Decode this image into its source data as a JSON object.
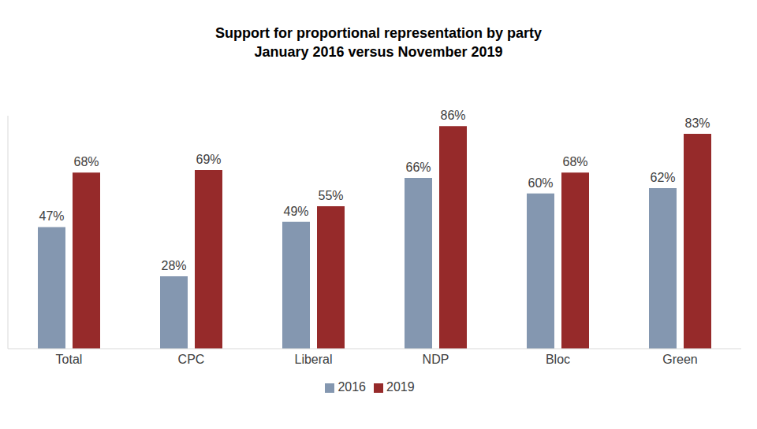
{
  "chart_data": {
    "type": "bar",
    "title": "Support for proportional representation by party",
    "subtitle": "January 2016 versus November 2019",
    "categories": [
      "Total",
      "CPC",
      "Liberal",
      "NDP",
      "Bloc",
      "Green"
    ],
    "series": [
      {
        "name": "2016",
        "color": "#8497b0",
        "values": [
          47,
          28,
          49,
          66,
          60,
          62
        ],
        "value_labels": [
          "47%",
          "28%",
          "49%",
          "66%",
          "60%",
          "62%"
        ]
      },
      {
        "name": "2019",
        "color": "#962a2a",
        "values": [
          68,
          69,
          55,
          86,
          68,
          83
        ],
        "value_labels": [
          "68%",
          "69%",
          "55%",
          "86%",
          "68%",
          "83%"
        ]
      }
    ],
    "ylim": [
      0,
      90
    ],
    "grid": false,
    "legend": "bottom",
    "data_labels": true,
    "tick_labels": "x"
  }
}
